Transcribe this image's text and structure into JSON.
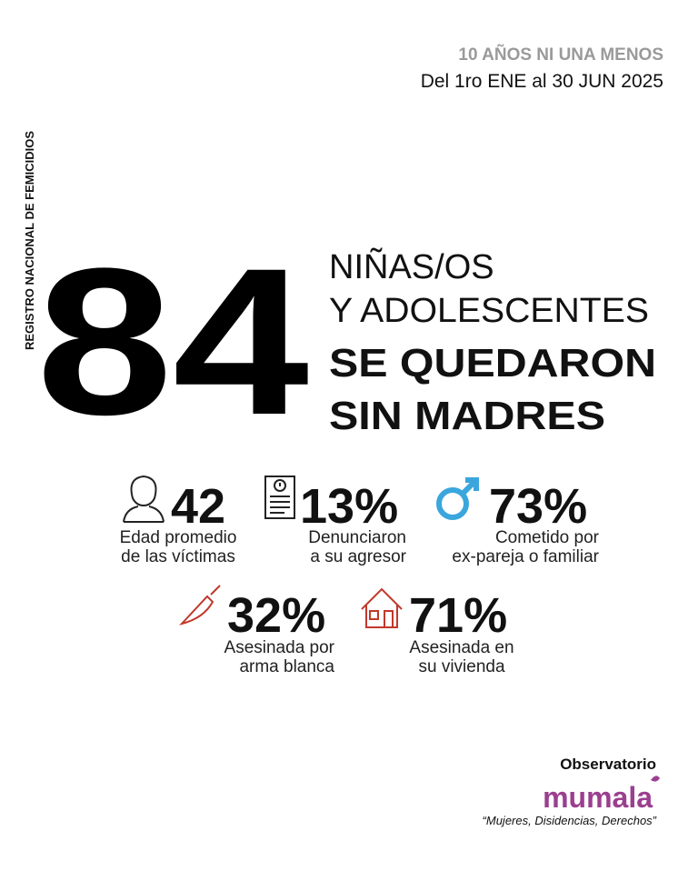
{
  "header": {
    "campaign": "10 AÑOS NI UNA MENOS",
    "period": "Del 1ro ENE al 30 JUN 2025"
  },
  "side_label": "REGISTRO NACIONAL DE FEMICIDIOS",
  "headline": {
    "number": "84",
    "lines": [
      "NIÑAS/OS",
      "Y ADOLESCENTES",
      "SE QUEDARON",
      "SIN MADRES"
    ]
  },
  "stats": [
    {
      "value": "42",
      "label_lines": [
        "Edad promedio",
        "de las víctimas"
      ]
    },
    {
      "value": "13%",
      "label_lines": [
        "Denunciaron",
        "a su agresor"
      ]
    },
    {
      "value": "73%",
      "label_lines": [
        "Cometido por",
        "ex-pareja o familiar"
      ]
    },
    {
      "value": "32%",
      "label_lines": [
        "Asesinada por",
        "arma blanca"
      ]
    },
    {
      "value": "71%",
      "label_lines": [
        "Asesinada en",
        "su vivienda"
      ]
    }
  ],
  "footer": {
    "org_label": "Observatorio",
    "brand": "mumala",
    "tagline": "“Mujeres, Disidencias, Derechos”"
  }
}
